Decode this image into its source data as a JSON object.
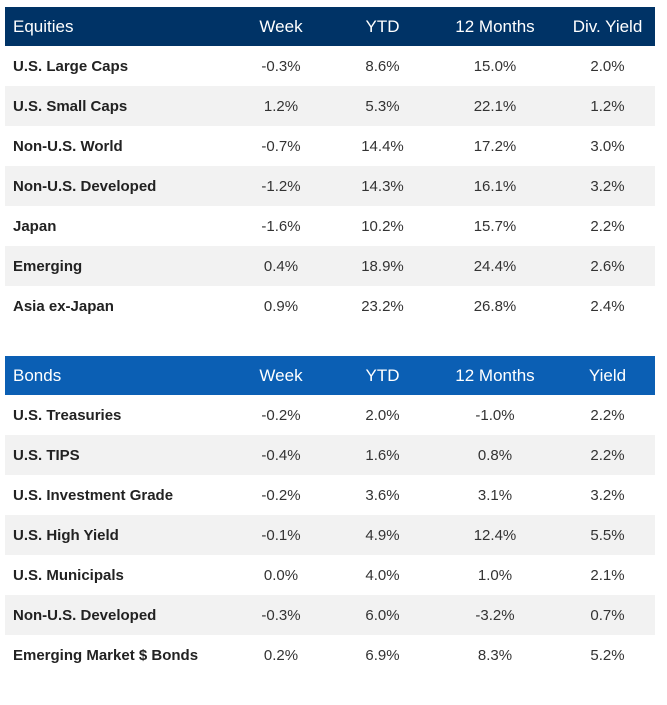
{
  "equities": {
    "headers": [
      "Equities",
      "Week",
      "YTD",
      "12 Months",
      "Div. Yield"
    ],
    "rows": [
      [
        "U.S. Large Caps",
        "-0.3%",
        "8.6%",
        "15.0%",
        "2.0%"
      ],
      [
        "U.S. Small Caps",
        "1.2%",
        "5.3%",
        "22.1%",
        "1.2%"
      ],
      [
        "Non-U.S. World",
        "-0.7%",
        "14.4%",
        "17.2%",
        "3.0%"
      ],
      [
        "Non-U.S. Developed",
        "-1.2%",
        "14.3%",
        "16.1%",
        "3.2%"
      ],
      [
        "Japan",
        "-1.6%",
        "10.2%",
        "15.7%",
        "2.2%"
      ],
      [
        "Emerging",
        "0.4%",
        "18.9%",
        "24.4%",
        "2.6%"
      ],
      [
        "Asia ex-Japan",
        "0.9%",
        "23.2%",
        "26.8%",
        "2.4%"
      ]
    ]
  },
  "bonds": {
    "headers": [
      "Bonds",
      "Week",
      "YTD",
      "12 Months",
      "Yield"
    ],
    "rows": [
      [
        "U.S. Treasuries",
        "-0.2%",
        "2.0%",
        "-1.0%",
        "2.2%"
      ],
      [
        "U.S. TIPS",
        "-0.4%",
        "1.6%",
        "0.8%",
        "2.2%"
      ],
      [
        "U.S. Investment Grade",
        "-0.2%",
        "3.6%",
        "3.1%",
        "3.2%"
      ],
      [
        "U.S. High Yield",
        "-0.1%",
        "4.9%",
        "12.4%",
        "5.5%"
      ],
      [
        "U.S. Municipals",
        "0.0%",
        "4.0%",
        "1.0%",
        "2.1%"
      ],
      [
        "Non-U.S. Developed",
        "-0.3%",
        "6.0%",
        "-3.2%",
        "0.7%"
      ],
      [
        "Emerging Market $ Bonds",
        "0.2%",
        "6.9%",
        "8.3%",
        "5.2%"
      ]
    ]
  },
  "colors": {
    "equities_header_bg": "#003366",
    "bonds_header_bg": "#0b5fb4",
    "stripe_bg": "#f2f2f2"
  }
}
